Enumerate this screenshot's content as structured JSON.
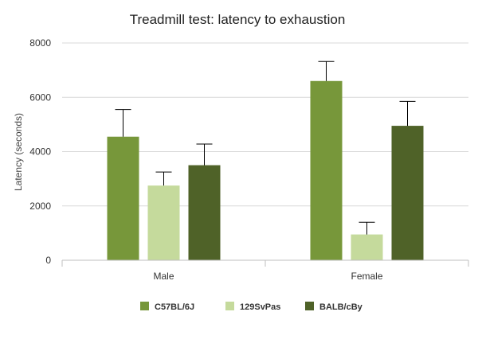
{
  "chart_data": {
    "type": "bar",
    "title": "Treadmill test: latency to exhaustion",
    "xlabel": "",
    "ylabel": "Latency (seconds)",
    "ylim": [
      0,
      8000
    ],
    "yticks": [
      0,
      2000,
      4000,
      6000,
      8000
    ],
    "grid": true,
    "legend_position": "bottom",
    "categories": [
      "Male",
      "Female"
    ],
    "series": [
      {
        "name": "C57BL/6J",
        "color": "#77973a",
        "values": [
          4550,
          6600
        ],
        "errors": [
          1000,
          720
        ]
      },
      {
        "name": "129SvPas",
        "color": "#c5da9c",
        "values": [
          2750,
          950
        ],
        "errors": [
          500,
          450
        ]
      },
      {
        "name": "BALB/cBy",
        "color": "#4f6228",
        "values": [
          3500,
          4950
        ],
        "errors": [
          780,
          900
        ]
      }
    ]
  }
}
